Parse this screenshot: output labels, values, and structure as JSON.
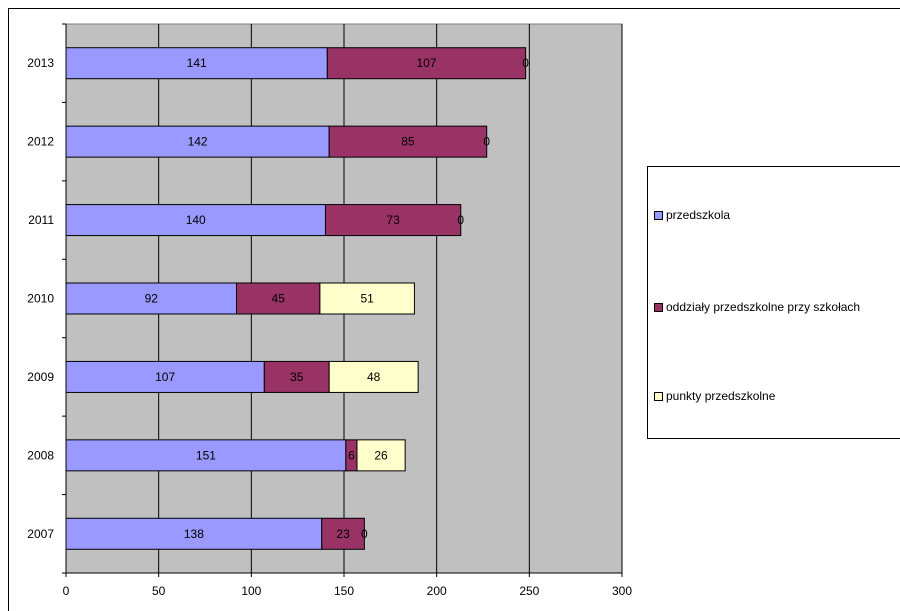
{
  "chart_data": {
    "type": "bar",
    "orientation": "horizontal",
    "stacked": true,
    "categories": [
      "2007",
      "2008",
      "2009",
      "2010",
      "2011",
      "2012",
      "2013"
    ],
    "series": [
      {
        "name": "przedszkola",
        "color": "#9999ff",
        "values": [
          138,
          151,
          107,
          92,
          140,
          142,
          141
        ]
      },
      {
        "name": "oddziały przedszkolne przy szkołach",
        "color": "#993366",
        "values": [
          23,
          6,
          35,
          45,
          73,
          85,
          107
        ]
      },
      {
        "name": "punkty przedszkolne",
        "color": "#ffffcc",
        "values": [
          0,
          26,
          48,
          51,
          0,
          0,
          0
        ]
      }
    ],
    "xlim": [
      0,
      300
    ],
    "xticks": [
      "0",
      "50",
      "100",
      "150",
      "200",
      "250",
      "300"
    ],
    "data_labels": true,
    "plot_background": "#c0c0c0",
    "grid": "vertical",
    "legend_position": "right"
  }
}
